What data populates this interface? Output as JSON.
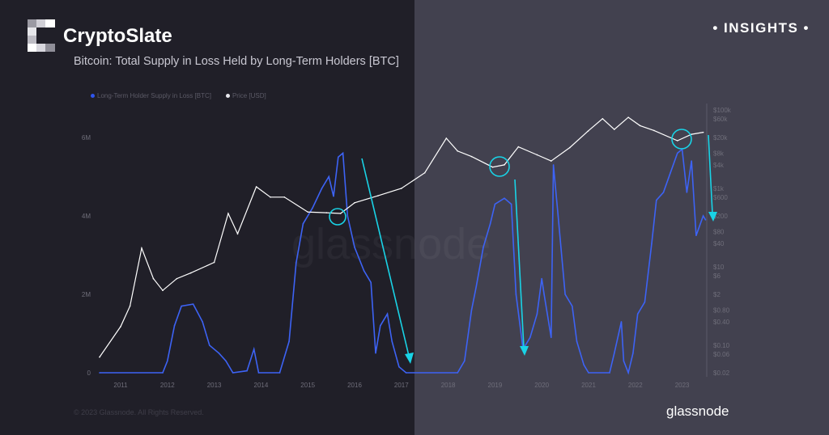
{
  "brand": {
    "name": "CryptoSlate",
    "badge": "• INSIGHTS •"
  },
  "footer": {
    "copyright": "© 2023 Glassnode. All Rights Reserved.",
    "logo_text": "glassnode",
    "watermark": "glassnode"
  },
  "colors": {
    "supply": "#3d63f5",
    "price": "#ffffff",
    "annotation": "#19d3e6",
    "bg_left": "#201f28",
    "bg_right": "#42414f"
  },
  "chart_data": {
    "type": "line",
    "title": "Bitcoin: Total Supply in Loss Held by Long-Term Holders [BTC]",
    "legend_position": "top-left",
    "grid": false,
    "x_ticks": [
      "2011",
      "2012",
      "2013",
      "2014",
      "2015",
      "2016",
      "2017",
      "2018",
      "2019",
      "2020",
      "2021",
      "2022",
      "2023"
    ],
    "y_left": {
      "ticks": [
        "0",
        "2M",
        "4M",
        "6M"
      ],
      "range": [
        0,
        6000000
      ],
      "scale": "linear"
    },
    "y_right": {
      "ticks": [
        "$0.02",
        "$0.06",
        "$0.10",
        "$0.40",
        "$0.80",
        "$2",
        "$6",
        "$10",
        "$40",
        "$80",
        "$200",
        "$600",
        "$1k",
        "$4k",
        "$8k",
        "$20k",
        "$60k",
        "$100k"
      ],
      "range": [
        0.02,
        100000
      ],
      "scale": "log"
    },
    "series": [
      {
        "name": "Long-Term Holder Supply in Loss [BTC]",
        "axis": "left",
        "color": "#3d63f5",
        "x": [
          2010.55,
          2011.9,
          2012.0,
          2012.15,
          2012.3,
          2012.55,
          2012.75,
          2012.9,
          2013.1,
          2013.25,
          2013.4,
          2013.7,
          2013.85,
          2013.95,
          2014.4,
          2014.6,
          2014.75,
          2014.9,
          2015.1,
          2015.3,
          2015.45,
          2015.55,
          2015.65,
          2015.75,
          2015.85,
          2016.0,
          2016.2,
          2016.35,
          2016.45,
          2016.55,
          2016.7,
          2016.8,
          2016.95,
          2017.1,
          2018.2,
          2018.35,
          2018.5,
          2018.6,
          2018.75,
          2018.9,
          2019.0,
          2019.2,
          2019.35,
          2019.45,
          2019.6,
          2019.75,
          2019.9,
          2020.0,
          2020.05,
          2020.2,
          2020.25,
          2020.35,
          2020.5,
          2020.65,
          2020.75,
          2020.9,
          2021.0,
          2021.45,
          2021.55,
          2021.7,
          2021.75,
          2021.85,
          2021.95,
          2022.05,
          2022.2,
          2022.35,
          2022.45,
          2022.6,
          2022.75,
          2022.9,
          2023.0,
          2023.1,
          2023.2,
          2023.3,
          2023.45,
          2023.5
        ],
        "y": [
          0,
          0,
          300000,
          1200000,
          1700000,
          1750000,
          1300000,
          700000,
          500000,
          300000,
          0,
          50000,
          600000,
          0,
          0,
          800000,
          2800000,
          3800000,
          4200000,
          4700000,
          5000000,
          4500000,
          5500000,
          5600000,
          4000000,
          3200000,
          2600000,
          2300000,
          500000,
          1200000,
          1500000,
          800000,
          150000,
          0,
          0,
          300000,
          1600000,
          2200000,
          3200000,
          3800000,
          4300000,
          4450000,
          4300000,
          2000000,
          600000,
          900000,
          1500000,
          2400000,
          2000000,
          900000,
          5300000,
          4000000,
          2000000,
          1700000,
          800000,
          200000,
          0,
          0,
          500000,
          1300000,
          300000,
          0,
          500000,
          1500000,
          1800000,
          3300000,
          4400000,
          4600000,
          5100000,
          5600000,
          5700000,
          4600000,
          5400000,
          3500000,
          4000000,
          3900000
        ]
      },
      {
        "name": "Price [USD]",
        "axis": "right",
        "color": "#ffffff",
        "x": [
          2010.55,
          2011.0,
          2011.2,
          2011.45,
          2011.7,
          2011.9,
          2012.2,
          2012.5,
          2013.0,
          2013.3,
          2013.5,
          2013.9,
          2014.2,
          2014.5,
          2015.0,
          2015.4,
          2015.7,
          2016.0,
          2016.5,
          2017.0,
          2017.5,
          2017.96,
          2018.2,
          2018.5,
          2018.95,
          2019.2,
          2019.5,
          2019.9,
          2020.2,
          2020.6,
          2020.99,
          2021.3,
          2021.55,
          2021.85,
          2022.1,
          2022.4,
          2022.9,
          2023.2,
          2023.45
        ],
        "y": [
          0.05,
          0.3,
          1,
          30,
          5,
          2.5,
          5,
          7,
          13,
          230,
          70,
          1100,
          600,
          600,
          250,
          240,
          230,
          430,
          650,
          1000,
          2500,
          19000,
          9000,
          6500,
          3500,
          4000,
          11500,
          7200,
          5000,
          11000,
          29000,
          60000,
          32000,
          65000,
          40000,
          30000,
          16500,
          24000,
          27000
        ]
      }
    ]
  }
}
